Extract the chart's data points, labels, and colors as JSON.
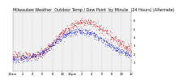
{
  "title": "Milwaukee Weather  Outdoor Temp / Dew Point  by Minute  (24 Hours) (Alternate)",
  "title_fontsize": 3.5,
  "bg_color": "#ffffff",
  "plot_bg_color": "#f0f0f0",
  "grid_color": "#bbbbbb",
  "red_color": "#cc0000",
  "blue_color": "#0000cc",
  "ylim": [
    0,
    70
  ],
  "yticks": [
    10,
    20,
    30,
    40,
    50,
    60
  ],
  "ytick_labels": [
    "1",
    "2",
    "3",
    "4",
    "5",
    "6"
  ],
  "xlabel_fontsize": 2.8,
  "ylabel_fontsize": 2.8,
  "n_points": 1440,
  "x_tick_positions": [
    0,
    2,
    4,
    6,
    8,
    10,
    12,
    14,
    16,
    18,
    20,
    22,
    24
  ],
  "x_tick_labels": [
    "12am",
    "2",
    "4",
    "6",
    "8",
    "10",
    "12pm",
    "2",
    "4",
    "6",
    "8",
    "10",
    "12"
  ],
  "noise_seed": 7,
  "temp_peak": 58,
  "temp_peak_time": 14.5,
  "temp_base_start": 18,
  "temp_base_end": 22,
  "dew_peak": 47,
  "dew_peak_time": 13.5,
  "dew_base_start": 12,
  "dew_base_end": 15,
  "drop_prob": 0.55
}
